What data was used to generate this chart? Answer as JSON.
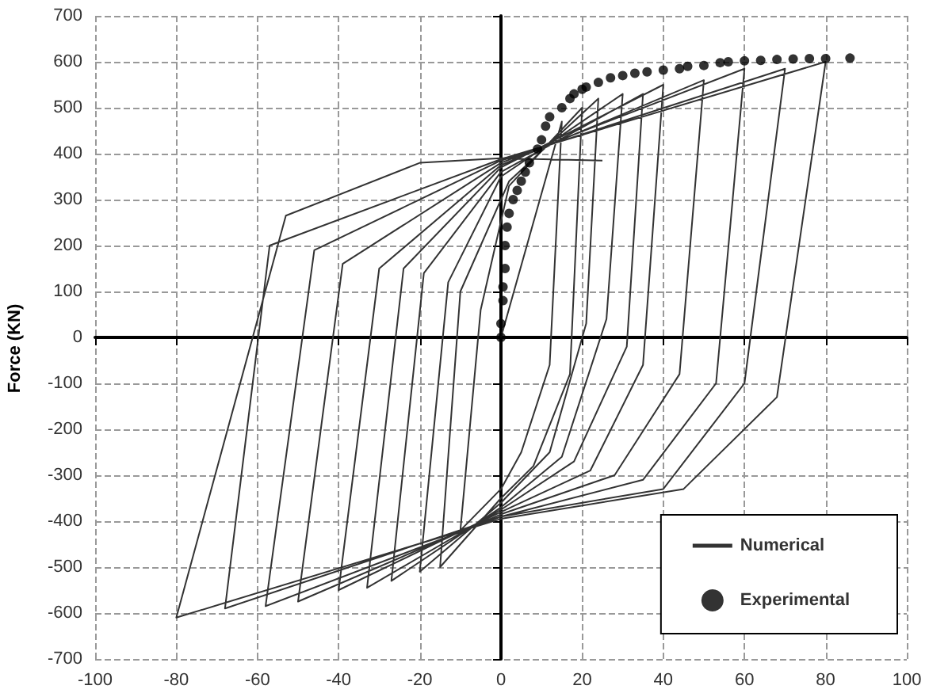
{
  "chart_data": {
    "type": "line",
    "ylabel": "Force (KN)",
    "xlim": [
      -100,
      100
    ],
    "ylim": [
      -700,
      700
    ],
    "xticks": [
      -100,
      -80,
      -60,
      -40,
      -20,
      0,
      20,
      40,
      60,
      80,
      100
    ],
    "yticks": [
      -700,
      -600,
      -500,
      -400,
      -300,
      -200,
      -100,
      0,
      100,
      200,
      300,
      400,
      500,
      600,
      700
    ],
    "grid": true,
    "legend": "bottom right",
    "series": [
      {
        "name": "Numerical",
        "color": "#333333",
        "marker": "none",
        "line_style": "solid",
        "x": [
          0,
          15,
          12,
          5,
          0,
          -10,
          -5,
          2,
          20,
          17,
          8,
          0,
          -15,
          -10,
          2,
          24,
          21,
          12,
          0,
          -20,
          -13,
          0,
          30,
          26,
          15,
          0,
          -27,
          -19,
          0,
          35,
          31,
          18,
          0,
          -33,
          -24,
          0,
          40,
          35,
          22,
          0,
          -40,
          -30,
          0,
          50,
          44,
          28,
          0,
          -50,
          -39,
          0,
          60,
          53,
          35,
          0,
          -58,
          -46,
          0,
          70,
          60,
          40,
          0,
          -68,
          -57,
          0,
          80,
          68,
          45,
          0,
          -80,
          -53,
          -20,
          0,
          25
        ],
        "values": [
          0,
          470,
          -60,
          -250,
          -330,
          -420,
          60,
          330,
          500,
          -80,
          -280,
          -350,
          -500,
          100,
          340,
          520,
          30,
          -250,
          -360,
          -510,
          120,
          350,
          530,
          40,
          -260,
          -370,
          -530,
          140,
          360,
          530,
          -20,
          -270,
          -375,
          -545,
          150,
          370,
          550,
          -60,
          -290,
          -380,
          -550,
          150,
          375,
          560,
          -80,
          -300,
          -385,
          -575,
          160,
          380,
          585,
          -100,
          -310,
          -390,
          -585,
          190,
          385,
          585,
          -100,
          -330,
          -390,
          -590,
          200,
          388,
          600,
          -130,
          -330,
          -395,
          -610,
          265,
          380,
          390,
          385
        ]
      },
      {
        "name": "Experimental",
        "type": "scatter",
        "color": "#000000",
        "marker": "circle",
        "x": [
          0,
          0,
          0.5,
          0.5,
          1,
          1,
          1.5,
          2,
          3,
          4,
          5,
          6,
          7,
          9,
          10,
          11,
          12,
          15,
          17,
          18,
          20,
          21,
          24,
          27,
          30,
          33,
          36,
          40,
          44,
          46,
          50,
          54,
          56,
          60,
          64,
          68,
          72,
          76,
          80,
          86
        ],
        "values": [
          0,
          30,
          80,
          110,
          150,
          200,
          240,
          270,
          300,
          320,
          340,
          360,
          380,
          410,
          430,
          460,
          480,
          500,
          520,
          530,
          540,
          545,
          555,
          565,
          570,
          575,
          578,
          582,
          585,
          590,
          592,
          598,
          600,
          602,
          603,
          605,
          606,
          607,
          607,
          608
        ]
      }
    ]
  }
}
